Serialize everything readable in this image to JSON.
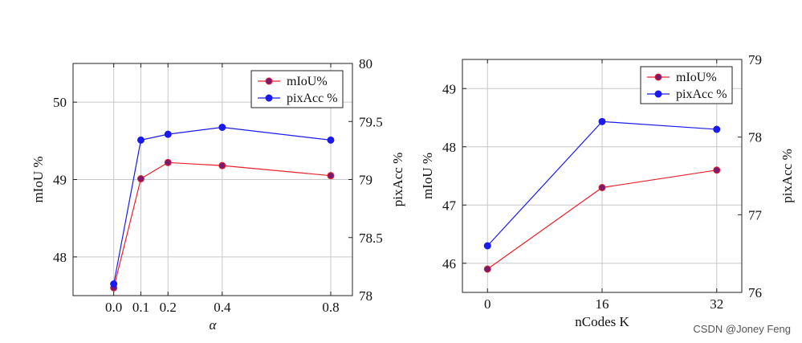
{
  "chart_data": [
    {
      "type": "line",
      "x": [
        0.0,
        0.1,
        0.2,
        0.4,
        0.8
      ],
      "x_tick_labels": [
        "0.0",
        "0.1",
        "0.2",
        "0.4",
        "0.8"
      ],
      "xlabel": "α",
      "xlim": [
        -0.15,
        0.88
      ],
      "ylabel_left": "mIoU %",
      "ylim_left": [
        47.5,
        50.5
      ],
      "yticks_left": [
        48,
        49,
        50
      ],
      "ylabel_right": "pixAcc %",
      "ylim_right": [
        78,
        80
      ],
      "yticks_right": [
        "78",
        "78.5",
        "79",
        "79.5",
        "80"
      ],
      "grid": true,
      "legend_position": "top-right",
      "series": [
        {
          "name": "mIoU%",
          "axis": "left",
          "color": "#e8202a",
          "marker_color": "#7a1a6e",
          "values": [
            47.6,
            49.01,
            49.22,
            49.18,
            49.05
          ]
        },
        {
          "name": "pixAcc %",
          "axis": "right",
          "color": "#1a1aee",
          "marker_color": "#1a1aee",
          "values": [
            78.1,
            79.34,
            79.39,
            79.45,
            79.34
          ]
        }
      ]
    },
    {
      "type": "line",
      "x": [
        0,
        16,
        32
      ],
      "x_tick_labels": [
        "0",
        "16",
        "32"
      ],
      "xlabel": "nCodes K",
      "xlim": [
        -3.5,
        35.5
      ],
      "ylabel_left": "mIoU %",
      "ylim_left": [
        45.5,
        49.5
      ],
      "yticks_left": [
        46,
        47,
        48,
        49
      ],
      "ylabel_right": "pixAcc %",
      "ylim_right": [
        76,
        79
      ],
      "yticks_right": [
        "76",
        "77",
        "78",
        "79"
      ],
      "grid": true,
      "legend_position": "top-right",
      "series": [
        {
          "name": "mIoU%",
          "axis": "left",
          "color": "#e8202a",
          "marker_color": "#7a1a6e",
          "values": [
            45.9,
            47.3,
            47.6
          ]
        },
        {
          "name": "pixAcc %",
          "axis": "right",
          "color": "#1a1aee",
          "marker_color": "#1a1aee",
          "values": [
            76.6,
            78.2,
            78.1
          ]
        }
      ]
    }
  ],
  "watermark": "CSDN @Joney Feng"
}
